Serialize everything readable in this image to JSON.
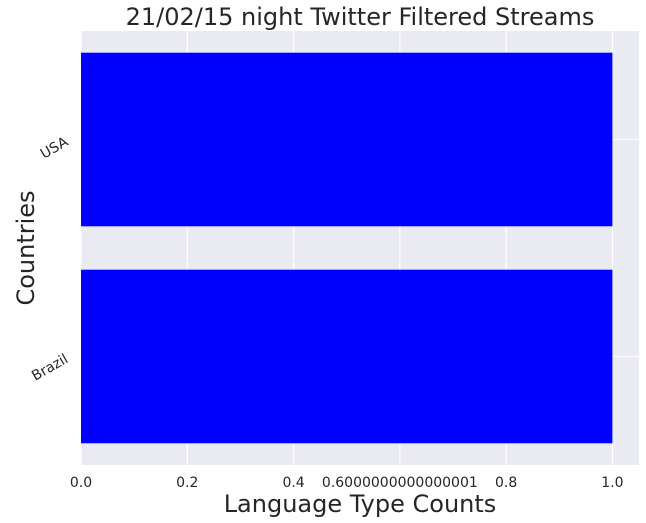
{
  "chart_data": {
    "type": "bar",
    "orientation": "horizontal",
    "title": "21/02/15 night Twitter Filtered Streams",
    "xlabel": "Language Type Counts",
    "ylabel": "Countries",
    "categories": [
      "Brazil",
      "USA"
    ],
    "values": [
      1,
      1
    ],
    "xlim": [
      0,
      1.05
    ],
    "xticks": [
      {
        "value": 0.0,
        "label": "0.0"
      },
      {
        "value": 0.2,
        "label": "0.2"
      },
      {
        "value": 0.4,
        "label": "0.4"
      },
      {
        "value": 0.6000000000000001,
        "label": "0.6000000000000001"
      },
      {
        "value": 0.8,
        "label": "0.8"
      },
      {
        "value": 1.0,
        "label": "1.0"
      }
    ],
    "grid": true,
    "bar_color": "#0000ff",
    "background_color": "#eaeaf2",
    "grid_color": "#ffffff"
  }
}
